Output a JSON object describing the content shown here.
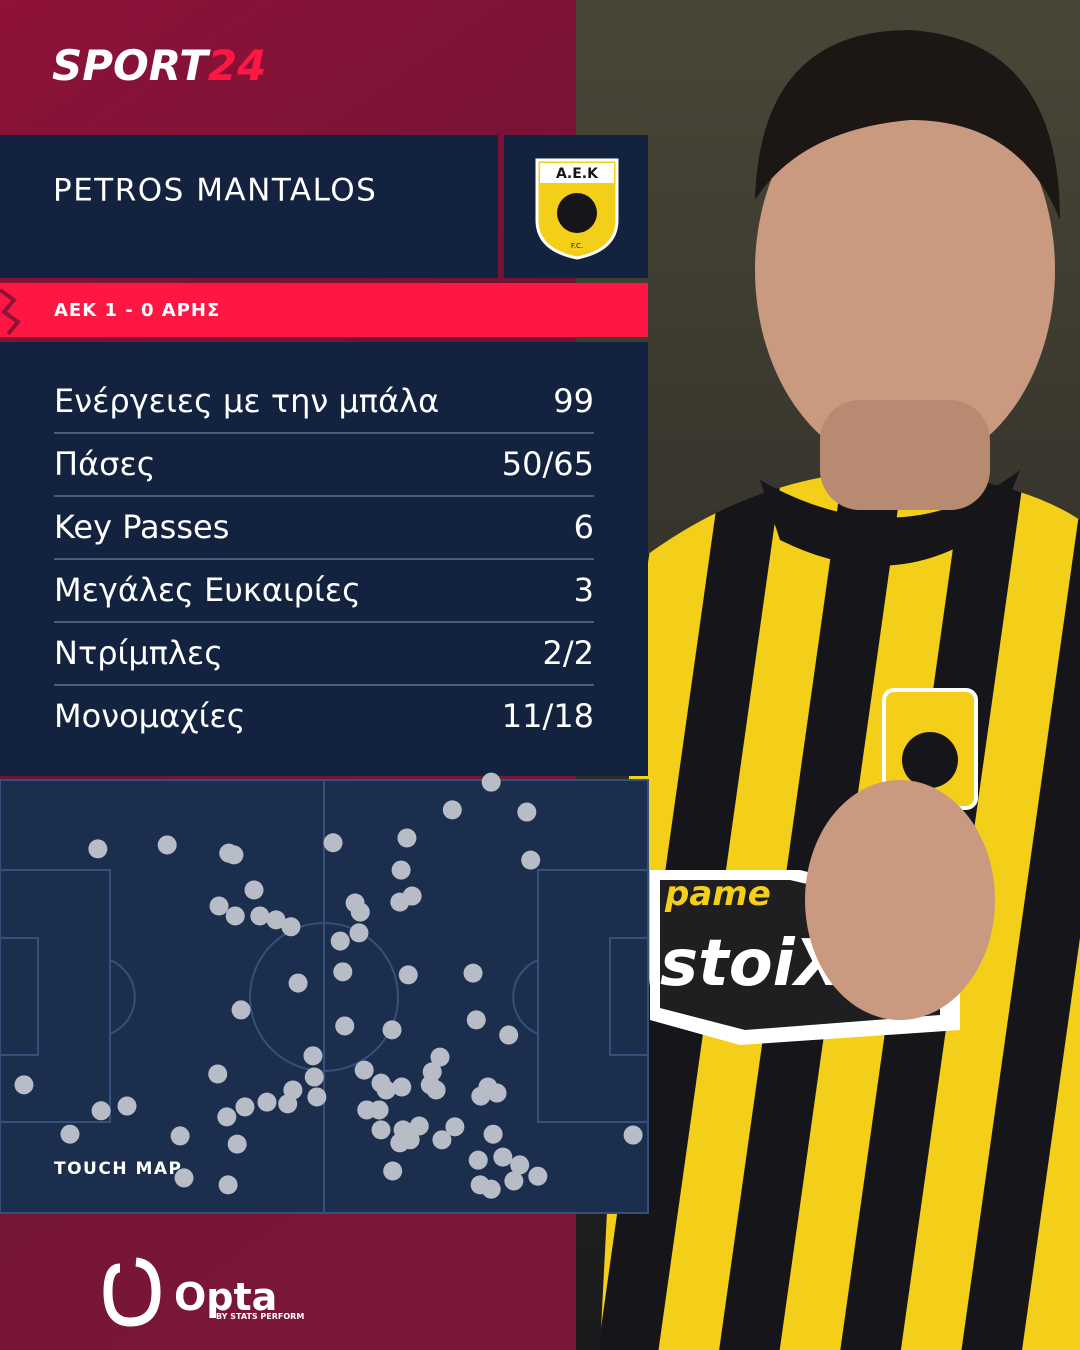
{
  "brand": {
    "main": "SPORT",
    "accent": "24"
  },
  "player": "PETROS MANTALOS",
  "badge": {
    "top": "Α.Ε.Κ",
    "bottom": "F.C."
  },
  "match": "ΑΕΚ 1 - 0 ΑΡΗΣ",
  "stats": [
    {
      "label": "Ενέργειες με την μπάλα",
      "value": 99
    },
    {
      "label": "Πάσες",
      "value": "50/65"
    },
    {
      "label": "Key Passes",
      "value": 6
    },
    {
      "label": "Μεγάλες Ευκαιρίες",
      "value": 3
    },
    {
      "label": "Ντρίμπλες",
      "value": "2/2"
    },
    {
      "label": "Μονομαχίες",
      "value": "11/18"
    }
  ],
  "touch_map": {
    "label": "TOUCH MAP",
    "xlim": [
      0,
      100
    ],
    "ylim": [
      0,
      100
    ],
    "x": [
      15.1,
      25.8,
      35.3,
      36.1,
      39.2,
      33.8,
      36.3,
      40.1,
      42.6,
      44.9,
      51.4,
      62.8,
      69.8,
      81.3,
      75.8,
      61.9,
      63.6,
      61.7,
      81.9,
      54.8,
      55.6,
      55.4,
      52.5,
      46.0,
      52.9,
      63.0,
      73.0,
      37.2,
      53.2,
      60.5,
      73.5,
      78.5,
      48.3,
      56.2,
      48.5,
      58.8,
      59.6,
      67.9,
      66.7,
      66.4,
      67.3,
      75.3,
      76.7,
      74.2,
      33.6,
      3.7,
      15.6,
      19.6,
      45.2,
      48.9,
      44.4,
      41.2,
      37.8,
      35.0,
      56.6,
      58.5,
      58.8,
      62.2,
      64.7,
      63.3,
      68.2,
      70.2,
      76.1,
      10.8,
      27.8,
      36.6,
      61.7,
      73.8,
      77.6,
      80.2,
      83.0,
      79.3,
      74.1,
      75.8,
      60.6,
      28.4,
      35.2,
      97.7,
      62.0
    ],
    "y": [
      15.9,
      15.0,
      16.9,
      17.3,
      25.4,
      29.1,
      31.4,
      31.4,
      32.3,
      33.9,
      14.5,
      13.4,
      6.9,
      7.4,
      0.5,
      20.8,
      26.8,
      28.2,
      18.5,
      28.4,
      30.5,
      35.3,
      37.2,
      46.9,
      44.3,
      45.0,
      44.6,
      53.1,
      56.8,
      57.7,
      55.4,
      58.9,
      63.7,
      67.0,
      68.6,
      70.0,
      71.6,
      64.0,
      67.4,
      70.4,
      71.6,
      70.9,
      72.3,
      73.0,
      67.9,
      70.4,
      76.4,
      75.3,
      71.6,
      73.2,
      74.8,
      74.4,
      75.5,
      77.8,
      76.2,
      76.2,
      80.8,
      80.8,
      79.9,
      83.1,
      83.1,
      80.1,
      81.8,
      81.8,
      82.2,
      84.1,
      83.8,
      87.8,
      87.1,
      88.9,
      91.5,
      92.6,
      93.5,
      94.5,
      90.3,
      91.9,
      93.5,
      82.0,
      70.9
    ]
  },
  "photo": {
    "sponsor_top": "pame",
    "sponsor_main": "stoiXima"
  },
  "footer": {
    "logo": "Opta",
    "tagline": "BY STATS PERFORM"
  }
}
